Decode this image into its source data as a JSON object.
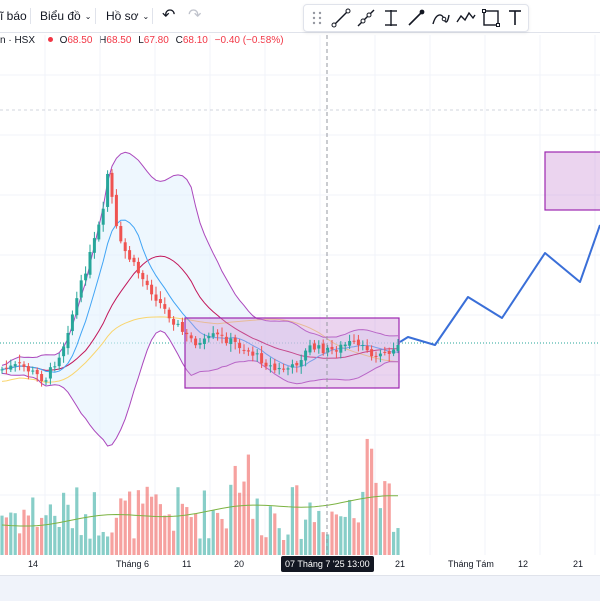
{
  "toolbar": {
    "alert_fragment": "ĩ báo",
    "chart_menu": "Biểu đồ",
    "profile_menu": "Hồ sơ",
    "chevron": "⌄",
    "undo_icon": "↶",
    "redo_icon": "↷",
    "drawing_tools": [
      "drag-handle",
      "line-tool",
      "ray-tool",
      "cursor-line-tool",
      "brush-tool",
      "curve-tool",
      "polyline-tool",
      "rectangle-tool",
      "text-tool"
    ]
  },
  "legend": {
    "symbol": "n · HSX",
    "open_label": "O",
    "open_value": "68.50",
    "high_label": "H",
    "high_value": "68.50",
    "low_label": "L",
    "low_value": "67.80",
    "close_label": "C",
    "close_value": "68.10",
    "change": "−0.40 (−0.58%)"
  },
  "time_axis": {
    "labels": [
      "14",
      "Tháng 6",
      "11",
      "20",
      "21",
      "Tháng Tám",
      "12",
      "21"
    ],
    "crosshair_time": "07 Tháng 7 '25    13:00"
  },
  "colors": {
    "up": "#26a69a",
    "down": "#ef5350",
    "projection": "#3a6fd8",
    "zone_fill": "#e1bee7",
    "zone_stroke": "#9c27b0",
    "bollinger_band": "#ab47bc",
    "ma_fast": "#2196f3",
    "ma_slow": "#fbc02d",
    "ma_mid": "#c2185b"
  }
}
